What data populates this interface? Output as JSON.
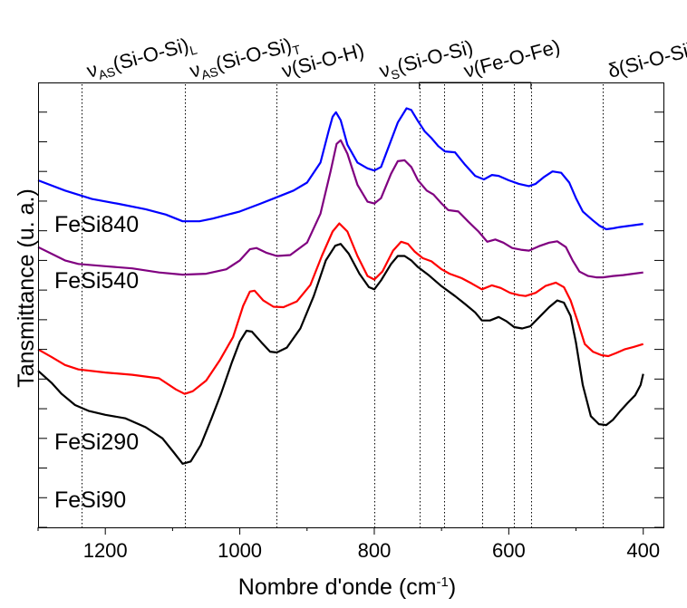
{
  "chart_data": {
    "type": "line",
    "xlabel": "Nombre d'onde (cm",
    "xlabel_sup": "-1",
    "xlabel_end": ")",
    "ylabel": "Tansmittance (u. a.)",
    "xlim": [
      1300,
      370
    ],
    "x_reversed": true,
    "ylim": [
      0,
      1
    ],
    "yticks_labeled": false,
    "grid": false,
    "xticks": [
      {
        "value": 1200,
        "label": "1200"
      },
      {
        "value": 1000,
        "label": "1000"
      },
      {
        "value": 800,
        "label": "800"
      },
      {
        "value": 600,
        "label": "600"
      },
      {
        "value": 400,
        "label": "400"
      }
    ],
    "reference_lines": [
      1235,
      1082,
      945,
      800,
      733,
      696,
      640,
      592,
      567,
      460
    ],
    "annotations": [
      {
        "label": "ν",
        "sub": "AS",
        "label_rest": "(Si-O-Si)",
        "sub_end": "L",
        "x": 1235
      },
      {
        "label": "ν",
        "sub": "AS",
        "label_rest": "(Si-O-Si)",
        "sub_end": "T",
        "x": 1082
      },
      {
        "label": "ν(Si-O-H)",
        "x": 945
      },
      {
        "label": "ν",
        "sub": "S",
        "label_rest": "(Si-O-Si)",
        "x": 800
      },
      {
        "label": "ν(Fe-O-Fe)",
        "x_range": [
          733,
          567
        ]
      },
      {
        "label": "δ(Si-O-Si)",
        "x": 460
      }
    ],
    "series": [
      {
        "name": "FeSi840",
        "color": "#0000ff",
        "points": [
          [
            1300,
            0.78
          ],
          [
            1260,
            0.757
          ],
          [
            1220,
            0.738
          ],
          [
            1180,
            0.727
          ],
          [
            1140,
            0.715
          ],
          [
            1110,
            0.703
          ],
          [
            1085,
            0.688
          ],
          [
            1060,
            0.688
          ],
          [
            1040,
            0.694
          ],
          [
            1000,
            0.71
          ],
          [
            970,
            0.727
          ],
          [
            945,
            0.742
          ],
          [
            920,
            0.757
          ],
          [
            900,
            0.775
          ],
          [
            880,
            0.82
          ],
          [
            868,
            0.89
          ],
          [
            862,
            0.923
          ],
          [
            857,
            0.933
          ],
          [
            850,
            0.915
          ],
          [
            840,
            0.86
          ],
          [
            825,
            0.82
          ],
          [
            810,
            0.807
          ],
          [
            800,
            0.802
          ],
          [
            790,
            0.81
          ],
          [
            780,
            0.85
          ],
          [
            765,
            0.91
          ],
          [
            752,
            0.942
          ],
          [
            745,
            0.938
          ],
          [
            735,
            0.913
          ],
          [
            725,
            0.89
          ],
          [
            715,
            0.875
          ],
          [
            705,
            0.857
          ],
          [
            695,
            0.845
          ],
          [
            680,
            0.843
          ],
          [
            665,
            0.815
          ],
          [
            650,
            0.79
          ],
          [
            637,
            0.782
          ],
          [
            625,
            0.792
          ],
          [
            615,
            0.79
          ],
          [
            600,
            0.78
          ],
          [
            585,
            0.772
          ],
          [
            570,
            0.767
          ],
          [
            560,
            0.772
          ],
          [
            548,
            0.787
          ],
          [
            535,
            0.8
          ],
          [
            522,
            0.797
          ],
          [
            510,
            0.775
          ],
          [
            500,
            0.74
          ],
          [
            490,
            0.71
          ],
          [
            475,
            0.69
          ],
          [
            465,
            0.678
          ],
          [
            455,
            0.67
          ],
          [
            445,
            0.672
          ],
          [
            435,
            0.675
          ],
          [
            420,
            0.678
          ],
          [
            410,
            0.68
          ],
          [
            400,
            0.682
          ]
        ]
      },
      {
        "name": "FeSi540",
        "color": "#800080",
        "points": [
          [
            1300,
            0.63
          ],
          [
            1280,
            0.615
          ],
          [
            1260,
            0.6
          ],
          [
            1240,
            0.592
          ],
          [
            1200,
            0.587
          ],
          [
            1160,
            0.582
          ],
          [
            1120,
            0.573
          ],
          [
            1085,
            0.568
          ],
          [
            1050,
            0.57
          ],
          [
            1020,
            0.58
          ],
          [
            1000,
            0.6
          ],
          [
            985,
            0.625
          ],
          [
            975,
            0.628
          ],
          [
            960,
            0.617
          ],
          [
            945,
            0.61
          ],
          [
            925,
            0.612
          ],
          [
            900,
            0.64
          ],
          [
            880,
            0.705
          ],
          [
            865,
            0.8
          ],
          [
            856,
            0.862
          ],
          [
            850,
            0.87
          ],
          [
            840,
            0.84
          ],
          [
            825,
            0.77
          ],
          [
            810,
            0.732
          ],
          [
            800,
            0.728
          ],
          [
            790,
            0.74
          ],
          [
            775,
            0.795
          ],
          [
            765,
            0.823
          ],
          [
            755,
            0.825
          ],
          [
            745,
            0.81
          ],
          [
            735,
            0.78
          ],
          [
            722,
            0.757
          ],
          [
            712,
            0.748
          ],
          [
            700,
            0.728
          ],
          [
            690,
            0.713
          ],
          [
            675,
            0.71
          ],
          [
            660,
            0.687
          ],
          [
            645,
            0.665
          ],
          [
            632,
            0.642
          ],
          [
            620,
            0.647
          ],
          [
            608,
            0.64
          ],
          [
            595,
            0.628
          ],
          [
            582,
            0.624
          ],
          [
            570,
            0.622
          ],
          [
            555,
            0.632
          ],
          [
            540,
            0.64
          ],
          [
            528,
            0.643
          ],
          [
            515,
            0.63
          ],
          [
            505,
            0.6
          ],
          [
            495,
            0.575
          ],
          [
            482,
            0.565
          ],
          [
            470,
            0.562
          ],
          [
            460,
            0.562
          ],
          [
            445,
            0.565
          ],
          [
            430,
            0.567
          ],
          [
            415,
            0.57
          ],
          [
            400,
            0.573
          ]
        ]
      },
      {
        "name": "FeSi290",
        "color": "#ff0000",
        "points": [
          [
            1300,
            0.4
          ],
          [
            1280,
            0.383
          ],
          [
            1260,
            0.365
          ],
          [
            1240,
            0.355
          ],
          [
            1200,
            0.348
          ],
          [
            1160,
            0.343
          ],
          [
            1120,
            0.335
          ],
          [
            1095,
            0.31
          ],
          [
            1082,
            0.3
          ],
          [
            1070,
            0.306
          ],
          [
            1050,
            0.33
          ],
          [
            1030,
            0.375
          ],
          [
            1010,
            0.428
          ],
          [
            995,
            0.498
          ],
          [
            985,
            0.53
          ],
          [
            978,
            0.532
          ],
          [
            965,
            0.51
          ],
          [
            950,
            0.496
          ],
          [
            935,
            0.495
          ],
          [
            915,
            0.508
          ],
          [
            895,
            0.545
          ],
          [
            878,
            0.61
          ],
          [
            862,
            0.665
          ],
          [
            852,
            0.683
          ],
          [
            840,
            0.665
          ],
          [
            825,
            0.61
          ],
          [
            810,
            0.565
          ],
          [
            800,
            0.557
          ],
          [
            788,
            0.575
          ],
          [
            772,
            0.622
          ],
          [
            760,
            0.642
          ],
          [
            750,
            0.637
          ],
          [
            740,
            0.62
          ],
          [
            728,
            0.605
          ],
          [
            715,
            0.598
          ],
          [
            700,
            0.58
          ],
          [
            688,
            0.57
          ],
          [
            670,
            0.56
          ],
          [
            655,
            0.548
          ],
          [
            640,
            0.535
          ],
          [
            625,
            0.544
          ],
          [
            612,
            0.538
          ],
          [
            598,
            0.527
          ],
          [
            585,
            0.522
          ],
          [
            575,
            0.52
          ],
          [
            560,
            0.527
          ],
          [
            545,
            0.543
          ],
          [
            530,
            0.55
          ],
          [
            518,
            0.54
          ],
          [
            508,
            0.51
          ],
          [
            497,
            0.46
          ],
          [
            487,
            0.412
          ],
          [
            475,
            0.395
          ],
          [
            462,
            0.387
          ],
          [
            452,
            0.385
          ],
          [
            440,
            0.392
          ],
          [
            428,
            0.4
          ],
          [
            415,
            0.405
          ],
          [
            400,
            0.412
          ]
        ]
      },
      {
        "name": "FeSi90",
        "color": "#000000",
        "points": [
          [
            1300,
            0.352
          ],
          [
            1280,
            0.325
          ],
          [
            1265,
            0.3
          ],
          [
            1245,
            0.275
          ],
          [
            1225,
            0.262
          ],
          [
            1200,
            0.253
          ],
          [
            1170,
            0.245
          ],
          [
            1140,
            0.225
          ],
          [
            1115,
            0.2
          ],
          [
            1098,
            0.168
          ],
          [
            1085,
            0.143
          ],
          [
            1073,
            0.148
          ],
          [
            1058,
            0.185
          ],
          [
            1042,
            0.245
          ],
          [
            1028,
            0.3
          ],
          [
            1012,
            0.37
          ],
          [
            1000,
            0.418
          ],
          [
            990,
            0.442
          ],
          [
            982,
            0.44
          ],
          [
            968,
            0.416
          ],
          [
            955,
            0.395
          ],
          [
            945,
            0.393
          ],
          [
            930,
            0.404
          ],
          [
            910,
            0.447
          ],
          [
            890,
            0.52
          ],
          [
            872,
            0.6
          ],
          [
            858,
            0.633
          ],
          [
            850,
            0.637
          ],
          [
            838,
            0.615
          ],
          [
            822,
            0.57
          ],
          [
            808,
            0.54
          ],
          [
            800,
            0.535
          ],
          [
            790,
            0.555
          ],
          [
            775,
            0.592
          ],
          [
            765,
            0.61
          ],
          [
            755,
            0.61
          ],
          [
            745,
            0.6
          ],
          [
            735,
            0.585
          ],
          [
            720,
            0.568
          ],
          [
            700,
            0.542
          ],
          [
            680,
            0.52
          ],
          [
            665,
            0.502
          ],
          [
            650,
            0.483
          ],
          [
            640,
            0.465
          ],
          [
            628,
            0.465
          ],
          [
            615,
            0.473
          ],
          [
            603,
            0.463
          ],
          [
            592,
            0.45
          ],
          [
            580,
            0.447
          ],
          [
            568,
            0.452
          ],
          [
            553,
            0.475
          ],
          [
            540,
            0.495
          ],
          [
            528,
            0.51
          ],
          [
            518,
            0.505
          ],
          [
            508,
            0.475
          ],
          [
            500,
            0.415
          ],
          [
            490,
            0.32
          ],
          [
            478,
            0.25
          ],
          [
            466,
            0.232
          ],
          [
            455,
            0.23
          ],
          [
            445,
            0.242
          ],
          [
            435,
            0.26
          ],
          [
            423,
            0.28
          ],
          [
            412,
            0.297
          ],
          [
            404,
            0.32
          ],
          [
            400,
            0.345
          ]
        ]
      }
    ],
    "series_labels": [
      "FeSi840",
      "FeSi540",
      "FeSi290",
      "FeSi90"
    ]
  }
}
